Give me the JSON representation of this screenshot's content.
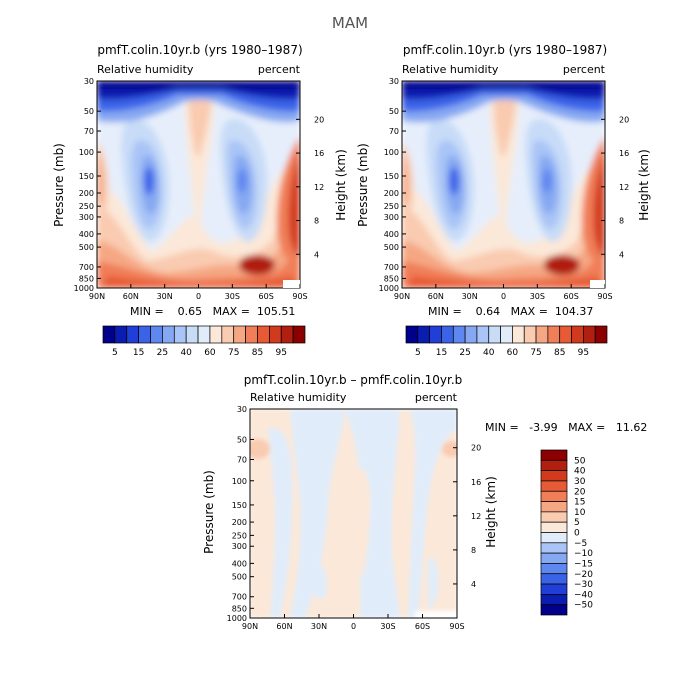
{
  "suptitle": "MAM",
  "pressure_ticks": [
    "30",
    "50",
    "70",
    "100",
    "150",
    "200",
    "250",
    "300",
    "400",
    "500",
    "700",
    "850",
    "1000"
  ],
  "pressure_values": [
    30,
    50,
    70,
    100,
    150,
    200,
    250,
    300,
    400,
    500,
    700,
    850,
    1000
  ],
  "height_ticks": [
    "20",
    "16",
    "12",
    "8",
    "4"
  ],
  "height_values": [
    20,
    16,
    12,
    8,
    4
  ],
  "lat_ticks": [
    "90N",
    "60N",
    "30N",
    "0",
    "30S",
    "60S",
    "90S"
  ],
  "chart_data": [
    {
      "type": "heatmap",
      "title": "pmfT.colin.10yr.b (yrs 1980–1987)",
      "left_label": "Relative humidity",
      "right_label": "percent",
      "ylabel": "Pressure (mb)",
      "y2label": "Height (km)",
      "ylim": [
        1000,
        30
      ],
      "xlim": [
        "90N",
        "90S"
      ],
      "stats_text": "MIN =    0.65   MAX =  105.51",
      "min": 0.65,
      "max": 105.51,
      "colorbar": {
        "labels": [
          "5",
          "15",
          "25",
          "40",
          "60",
          "75",
          "85",
          "95"
        ],
        "colors": [
          "#00008b",
          "#0a1db0",
          "#1f3fd6",
          "#3a63e8",
          "#5f87f0",
          "#86a8f2",
          "#a9c4f6",
          "#c8dcf8",
          "#e0ecfa",
          "#fbe8d8",
          "#f9cbb0",
          "#f5a784",
          "#f07e58",
          "#e65a35",
          "#d13a1c",
          "#b01f10",
          "#8b0000"
        ]
      }
    },
    {
      "type": "heatmap",
      "title": "pmfF.colin.10yr.b (yrs 1980–1987)",
      "left_label": "Relative humidity",
      "right_label": "percent",
      "ylabel": "Pressure (mb)",
      "y2label": "Height (km)",
      "ylim": [
        1000,
        30
      ],
      "xlim": [
        "90N",
        "90S"
      ],
      "stats_text": "MIN =    0.64   MAX =  104.37",
      "min": 0.64,
      "max": 104.37,
      "colorbar": {
        "labels": [
          "5",
          "15",
          "25",
          "40",
          "60",
          "75",
          "85",
          "95"
        ],
        "colors": [
          "#00008b",
          "#0a1db0",
          "#1f3fd6",
          "#3a63e8",
          "#5f87f0",
          "#86a8f2",
          "#a9c4f6",
          "#c8dcf8",
          "#e0ecfa",
          "#fbe8d8",
          "#f9cbb0",
          "#f5a784",
          "#f07e58",
          "#e65a35",
          "#d13a1c",
          "#b01f10",
          "#8b0000"
        ]
      }
    },
    {
      "type": "heatmap",
      "title": "pmfT.colin.10yr.b – pmfF.colin.10yr.b",
      "left_label": "Relative humidity",
      "right_label": "percent",
      "ylabel": "Pressure (mb)",
      "y2label": "Height (km)",
      "ylim": [
        1000,
        30
      ],
      "xlim": [
        "90N",
        "90S"
      ],
      "stats_text": "MIN =   -3.99   MAX =   11.62",
      "min": -3.99,
      "max": 11.62,
      "colorbar": {
        "labels": [
          "50",
          "40",
          "30",
          "20",
          "15",
          "10",
          "5",
          "0",
          "−5",
          "−10",
          "−15",
          "−20",
          "−30",
          "−40",
          "−50"
        ],
        "colors": [
          "#8b0000",
          "#b01f10",
          "#d13a1c",
          "#e65a35",
          "#f07e58",
          "#f5a784",
          "#f9cbb0",
          "#fbe8d8",
          "#e0ecfa",
          "#a9c4f6",
          "#86a8f2",
          "#5f87f0",
          "#3a63e8",
          "#1f3fd6",
          "#0a1db0",
          "#00008b"
        ]
      }
    }
  ]
}
